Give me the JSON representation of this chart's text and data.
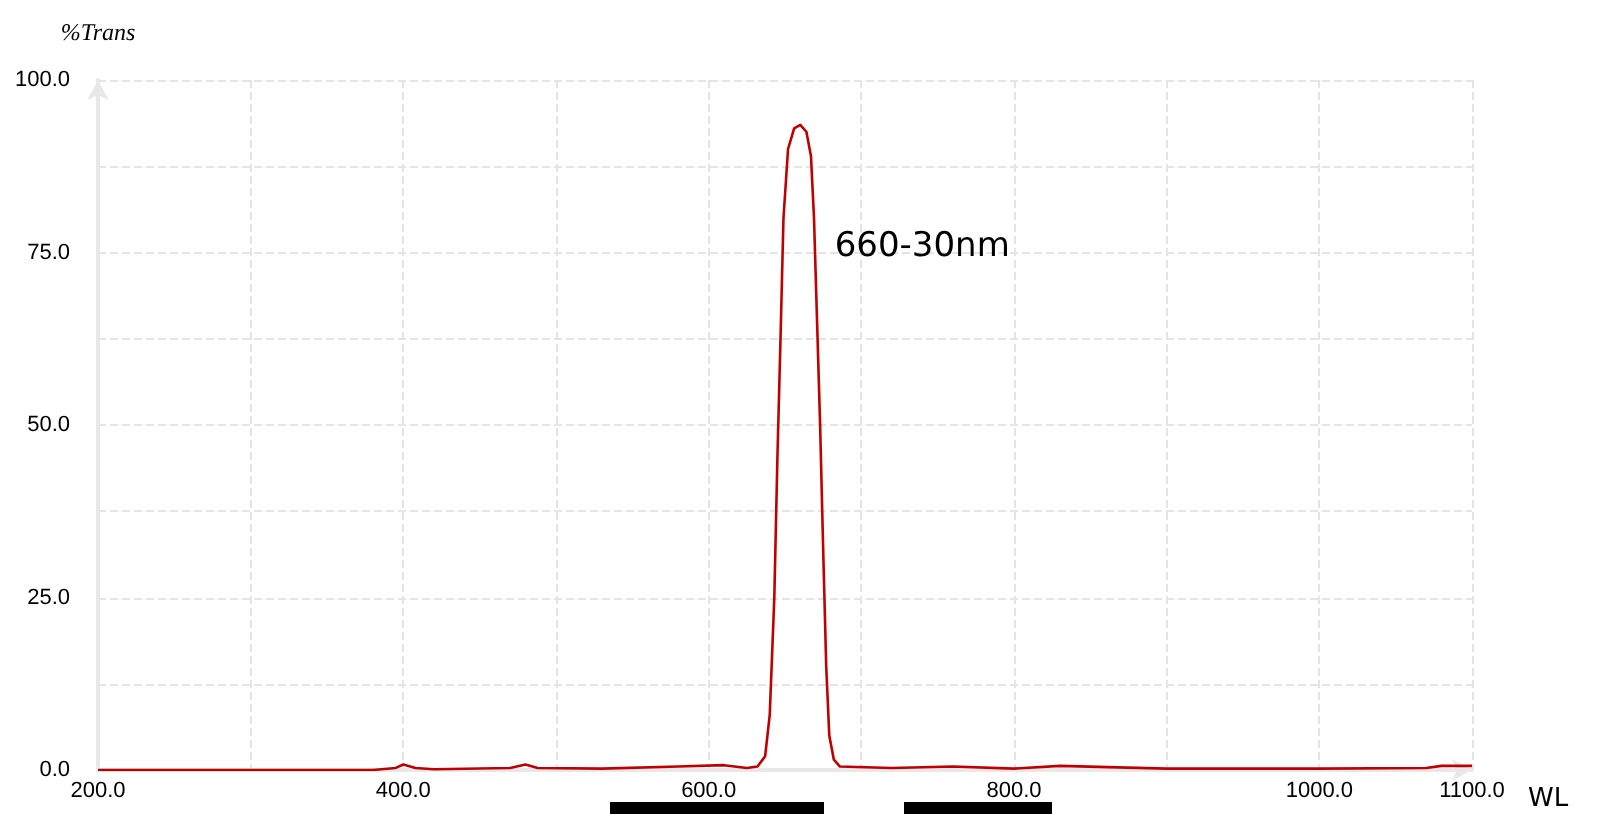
{
  "chart_data": {
    "type": "line",
    "xlabel": "WL",
    "ylabel": "%Trans",
    "annotations": [
      {
        "text": "660-30nm",
        "x": 676,
        "y": 76
      }
    ],
    "xlim": [
      200,
      1100
    ],
    "xticks": [
      {
        "value": 200,
        "label": "200.0"
      },
      {
        "value": 300,
        "label": null
      },
      {
        "value": 400,
        "label": "400.0"
      },
      {
        "value": 500,
        "label": null
      },
      {
        "value": 600,
        "label": "600.0"
      },
      {
        "value": 700,
        "label": null
      },
      {
        "value": 800,
        "label": "800.0"
      },
      {
        "value": 900,
        "label": null
      },
      {
        "value": 1000,
        "label": "1000.0"
      },
      {
        "value": 1100,
        "label": "1100.0"
      }
    ],
    "ylim": [
      0,
      100
    ],
    "yticks": [
      {
        "value": 0,
        "label": "0.0"
      },
      {
        "value": 12.5,
        "label": null
      },
      {
        "value": 25,
        "label": "25.0"
      },
      {
        "value": 37.5,
        "label": null
      },
      {
        "value": 50,
        "label": "50.0"
      },
      {
        "value": 62.5,
        "label": null
      },
      {
        "value": 75,
        "label": "75.0"
      },
      {
        "value": 87.5,
        "label": null
      },
      {
        "value": 100,
        "label": "100.0"
      }
    ],
    "grid": true,
    "marker": "none",
    "line_style": "solid",
    "series": [
      {
        "color": "#c00000",
        "x": [
          200,
          380,
          395,
          400,
          408,
          420,
          470,
          480,
          488,
          530,
          580,
          610,
          625,
          632,
          637,
          640,
          643,
          645,
          647,
          649,
          652,
          656,
          660,
          664,
          667,
          669,
          671,
          673,
          675,
          677,
          679,
          682,
          686,
          720,
          760,
          800,
          830,
          900,
          1000,
          1070,
          1080,
          1100
        ],
        "values": [
          0,
          0,
          0.3,
          0.8,
          0.3,
          0.1,
          0.3,
          0.8,
          0.3,
          0.2,
          0.5,
          0.7,
          0.3,
          0.5,
          2,
          8,
          25,
          45,
          62,
          80,
          90,
          93,
          93.5,
          92.5,
          89,
          80,
          65,
          50,
          32,
          15,
          5,
          1.5,
          0.5,
          0.3,
          0.5,
          0.2,
          0.6,
          0.2,
          0.2,
          0.3,
          0.6,
          0.6
        ]
      }
    ]
  }
}
